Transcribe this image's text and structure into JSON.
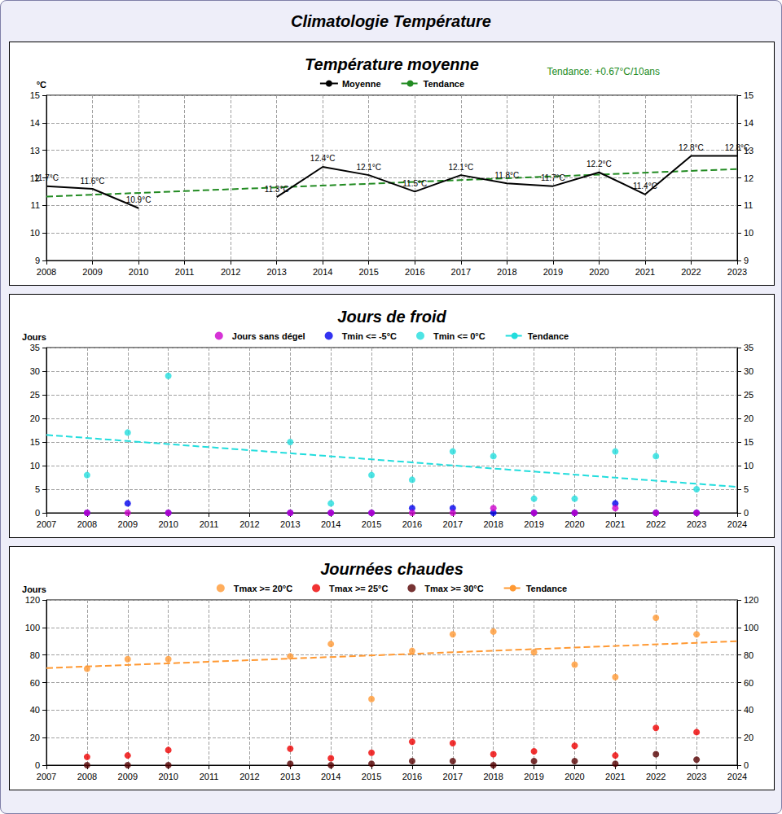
{
  "title": "Climatologie Température",
  "chart_data": [
    {
      "type": "line",
      "title": "Température moyenne",
      "y_label": "°C",
      "annotation": "Tendance: +0.67°C/10ans",
      "x": [
        2008,
        2009,
        2010,
        2011,
        2012,
        2013,
        2014,
        2015,
        2016,
        2017,
        2018,
        2019,
        2020,
        2021,
        2022,
        2023
      ],
      "xlim": [
        2008,
        2023
      ],
      "xticks": [
        2008,
        2009,
        2010,
        2011,
        2012,
        2013,
        2014,
        2015,
        2016,
        2017,
        2018,
        2019,
        2020,
        2021,
        2022,
        2023
      ],
      "ylim": [
        9,
        15
      ],
      "yticks": [
        9,
        10,
        11,
        12,
        13,
        14,
        15
      ],
      "grid": true,
      "series": [
        {
          "name": "Moyenne",
          "color": "#000000",
          "line_style": "solid",
          "data_labels": true,
          "values": [
            11.7,
            11.6,
            10.9,
            null,
            null,
            11.3,
            12.4,
            12.1,
            11.5,
            12.1,
            11.8,
            11.7,
            12.2,
            11.4,
            12.8,
            12.8
          ],
          "value_labels": [
            "11.7°C",
            "11.6°C",
            "10.9°C",
            null,
            null,
            "11.3°C",
            "12.4°C",
            "12.1°C",
            "11.5°C",
            "12.1°C",
            "11.8°C",
            "11.7°C",
            "12.2°C",
            "11.4°C",
            "12.8°C",
            "12.8°C"
          ]
        },
        {
          "name": "Tendance",
          "color": "#228b22",
          "line_style": "dashed",
          "x": [
            2008,
            2023
          ],
          "values": [
            11.32,
            12.32
          ]
        }
      ]
    },
    {
      "type": "scatter",
      "title": "Jours de froid",
      "y_label": "Jours",
      "x": [
        2008,
        2009,
        2010,
        2013,
        2014,
        2015,
        2016,
        2017,
        2018,
        2019,
        2020,
        2021,
        2022,
        2023
      ],
      "xlim": [
        2007,
        2024
      ],
      "xticks": [
        2007,
        2008,
        2009,
        2010,
        2011,
        2012,
        2013,
        2014,
        2015,
        2016,
        2017,
        2018,
        2019,
        2020,
        2021,
        2022,
        2023,
        2024
      ],
      "ylim": [
        0,
        35
      ],
      "yticks": [
        0,
        5,
        10,
        15,
        20,
        25,
        30,
        35
      ],
      "grid": true,
      "series": [
        {
          "name": "Jours sans dégel",
          "color": "#cc00cc",
          "marker": "circle",
          "values": [
            0,
            0,
            0,
            0,
            0,
            0,
            0,
            0,
            1,
            0,
            0,
            1,
            0,
            0
          ]
        },
        {
          "name": "Tmin <= -5°C",
          "color": "#0000ee",
          "marker": "circle",
          "values": [
            0,
            2,
            0,
            0,
            0,
            0,
            1,
            1,
            0,
            0,
            0,
            2,
            0,
            0
          ]
        },
        {
          "name": "Tmin <= 0°C",
          "color": "#22dddd",
          "marker": "circle",
          "values": [
            8,
            17,
            29,
            15,
            2,
            8,
            7,
            13,
            12,
            3,
            3,
            13,
            12,
            5
          ]
        },
        {
          "name": "Tendance",
          "type": "line",
          "color": "#22dddd",
          "line_style": "dashed",
          "x": [
            2007,
            2024
          ],
          "values": [
            16.5,
            5.5
          ]
        }
      ]
    },
    {
      "type": "scatter",
      "title": "Journées chaudes",
      "y_label": "Jours",
      "x": [
        2008,
        2009,
        2010,
        2013,
        2014,
        2015,
        2016,
        2017,
        2018,
        2019,
        2020,
        2021,
        2022,
        2023
      ],
      "xlim": [
        2007,
        2024
      ],
      "xticks": [
        2007,
        2008,
        2009,
        2010,
        2011,
        2012,
        2013,
        2014,
        2015,
        2016,
        2017,
        2018,
        2019,
        2020,
        2021,
        2022,
        2023,
        2024
      ],
      "ylim": [
        0,
        120
      ],
      "yticks": [
        0,
        20,
        40,
        60,
        80,
        100,
        120
      ],
      "grid": true,
      "series": [
        {
          "name": "Tmax >= 20°C",
          "color": "#ff9933",
          "marker": "circle",
          "values": [
            70,
            77,
            77,
            79,
            88,
            48,
            83,
            95,
            97,
            82,
            73,
            64,
            107,
            95
          ]
        },
        {
          "name": "Tmax >= 25°C",
          "color": "#ee0000",
          "marker": "circle",
          "values": [
            6,
            7,
            11,
            12,
            5,
            9,
            17,
            16,
            8,
            10,
            14,
            7,
            27,
            24
          ]
        },
        {
          "name": "Tmax >= 30°C",
          "color": "#550000",
          "marker": "circle",
          "values": [
            0,
            0,
            0,
            1,
            0,
            1,
            3,
            3,
            0,
            3,
            3,
            1,
            8,
            4
          ]
        },
        {
          "name": "Tendance",
          "type": "line",
          "color": "#ff9933",
          "line_style": "dashed",
          "x": [
            2007,
            2024
          ],
          "values": [
            70.5,
            90
          ]
        }
      ]
    }
  ]
}
